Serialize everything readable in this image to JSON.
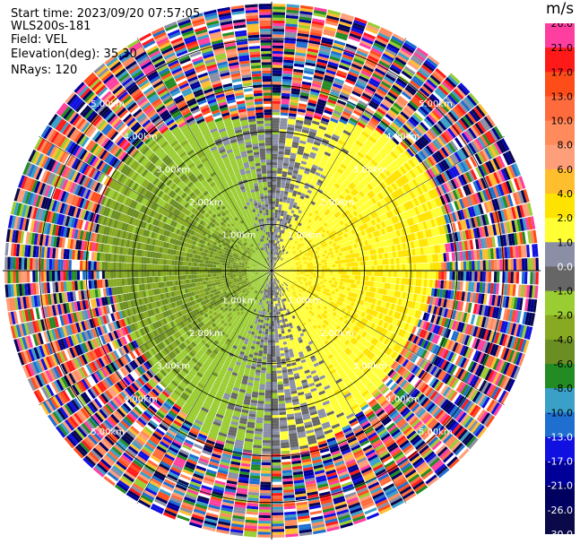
{
  "header": {
    "start_time": "Start time: 2023/09/20 07:57:05",
    "instrument": "WLS200s-181",
    "field": "Field: VEL",
    "elevation": "Elevation(deg): 35.30",
    "nrays": "NRays: 120"
  },
  "colorbar": {
    "unit": "m/s",
    "ticks": [
      "26.0",
      "21.0",
      "17.0",
      "13.0",
      "10.0",
      "8.0",
      "6.0",
      "4.0",
      "2.0",
      "1.0",
      "0.0",
      "-1.0",
      "-2.0",
      "-4.0",
      "-6.0",
      "-8.0",
      "-10.0",
      "-13.0",
      "-17.0",
      "-21.0",
      "-26.0",
      "-30.0"
    ],
    "colors": [
      "#ff3fa0",
      "#ff1a1a",
      "#ff4d1a",
      "#ff6b3d",
      "#ff8a5c",
      "#ff9f7a",
      "#ffbe2e",
      "#ffe300",
      "#ffff33",
      "#8a8fa5",
      "#666666",
      "#9acd32",
      "#88aa22",
      "#6b8e23",
      "#228b22",
      "#3aa0c8",
      "#1e6fd0",
      "#1010e0",
      "#000098",
      "#000060",
      "#0a0a4a"
    ]
  },
  "chart_data": {
    "type": "heatmap",
    "projection": "polar",
    "field": "VEL",
    "nrays": 120,
    "elevation_deg": 35.3,
    "range_ring_labels": [
      "1.00km",
      "2.00km",
      "3.00km",
      "4.00km",
      "5.00km"
    ],
    "range_rings_km": [
      1,
      2,
      3,
      4,
      5
    ],
    "max_range_km": 5.8,
    "value_range": [
      -30.0,
      26.0
    ],
    "grid": true
  }
}
